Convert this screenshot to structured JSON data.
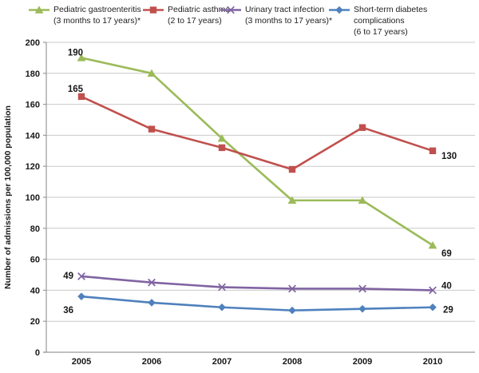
{
  "chart_data": {
    "type": "line",
    "title": "",
    "xlabel": "",
    "ylabel": "Number of admissions  per 100,000 population",
    "categories": [
      "2005",
      "2006",
      "2007",
      "2008",
      "2009",
      "2010"
    ],
    "ylim": [
      0,
      200
    ],
    "ytick_step": 20,
    "grid": true,
    "legend_position": "top",
    "series": [
      {
        "name": "Pediatric gastroenteritis (3 months to 17 years)*",
        "legend_lines": [
          "Pediatric gastroenteritis",
          "(3 months to 17 years)*"
        ],
        "color": "#9BBB59",
        "marker": "triangle",
        "values": [
          190,
          180,
          138,
          98,
          98,
          69
        ],
        "labels": {
          "first": "190",
          "last": "69"
        }
      },
      {
        "name": "Pediatric asthma (2 to 17 years)",
        "legend_lines": [
          "Pediatric asthma",
          "(2 to 17 years)"
        ],
        "color": "#C0504D",
        "marker": "square",
        "values": [
          165,
          144,
          132,
          118,
          145,
          130
        ],
        "labels": {
          "first": "165",
          "last": "130"
        }
      },
      {
        "name": "Urinary tract infection (3 months to 17 years)*",
        "legend_lines": [
          "Urinary tract infection",
          "(3 months to 17 years)*"
        ],
        "color": "#8064A2",
        "marker": "x",
        "values": [
          49,
          45,
          42,
          41,
          41,
          40
        ],
        "labels": {
          "first": "49",
          "last": "40"
        }
      },
      {
        "name": "Short-term diabetes complications (6 to 17 years)",
        "legend_lines": [
          "Short-term diabetes",
          "complications",
          "(6 to 17  years)"
        ],
        "color": "#4F81BD",
        "marker": "diamond",
        "values": [
          36,
          32,
          29,
          27,
          28,
          29
        ],
        "labels": {
          "first": "36",
          "last": "29"
        }
      }
    ]
  }
}
